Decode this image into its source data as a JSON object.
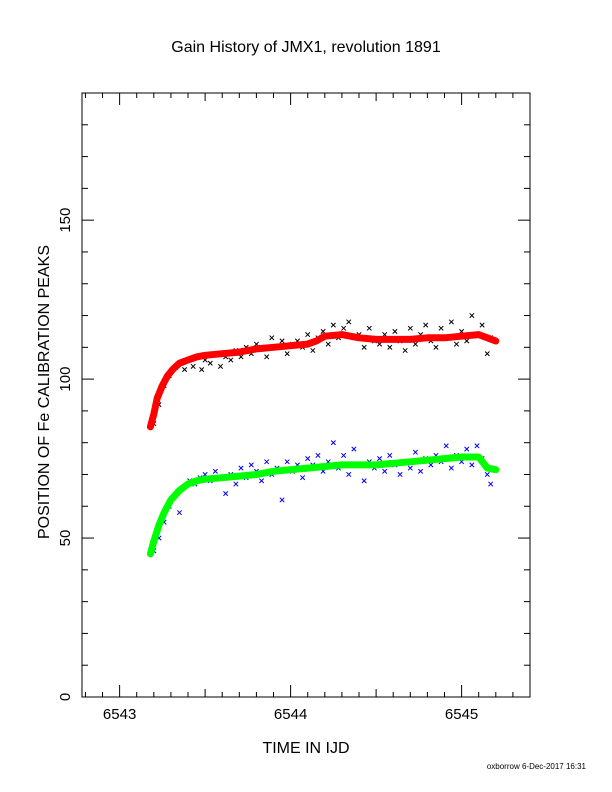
{
  "chart_data": {
    "type": "scatter",
    "title": "Gain History of JMX1, revolution 1891",
    "xlabel": "TIME IN IJD",
    "ylabel": "POSITION OF Fe CALIBRATION PEAKS",
    "xlim": [
      6542.78,
      6545.4
    ],
    "ylim": [
      0,
      190
    ],
    "x_ticks": [
      6543,
      6544,
      6545
    ],
    "y_ticks": [
      0,
      50,
      100,
      150
    ],
    "grid": false,
    "footer": "oxborrow 6-Dec-2017 16:31",
    "series": [
      {
        "role": "upper-fit",
        "style": "thick-line",
        "color": "#ff0000",
        "x": [
          6543.18,
          6543.2,
          6543.22,
          6543.25,
          6543.28,
          6543.31,
          6543.35,
          6543.4,
          6543.45,
          6543.5,
          6543.6,
          6543.7,
          6543.8,
          6543.9,
          6544.0,
          6544.1,
          6544.15,
          6544.2,
          6544.3,
          6544.4,
          6544.5,
          6544.6,
          6544.7,
          6544.8,
          6544.9,
          6545.0,
          6545.1,
          6545.15,
          6545.2
        ],
        "y": [
          85,
          89,
          94,
          98,
          101,
          103,
          105,
          106,
          107,
          107.5,
          108,
          108.5,
          109.5,
          110,
          110.5,
          111,
          112,
          113.5,
          114,
          113,
          112.5,
          112.5,
          112.5,
          113,
          113,
          113.5,
          114,
          113,
          112
        ]
      },
      {
        "role": "upper-points",
        "style": "cross",
        "color": "#000000",
        "x": [
          6543.2,
          6543.23,
          6543.26,
          6543.29,
          6543.31,
          6543.33,
          6543.36,
          6543.38,
          6543.41,
          6543.43,
          6543.45,
          6543.48,
          6543.5,
          6543.53,
          6543.56,
          6543.59,
          6543.62,
          6543.65,
          6543.68,
          6543.71,
          6543.74,
          6543.77,
          6543.8,
          6543.83,
          6543.86,
          6543.89,
          6543.92,
          6543.95,
          6543.98,
          6544.01,
          6544.04,
          6544.07,
          6544.1,
          6544.13,
          6544.16,
          6544.19,
          6544.22,
          6544.25,
          6544.28,
          6544.31,
          6544.34,
          6544.37,
          6544.4,
          6544.43,
          6544.46,
          6544.49,
          6544.52,
          6544.55,
          6544.58,
          6544.61,
          6544.64,
          6544.67,
          6544.7,
          6544.73,
          6544.76,
          6544.79,
          6544.82,
          6544.85,
          6544.88,
          6544.91,
          6544.94,
          6544.97,
          6545.0,
          6545.03,
          6545.06,
          6545.09,
          6545.12,
          6545.15,
          6545.17
        ],
        "y": [
          86,
          92,
          98,
          101,
          103,
          104,
          105,
          103,
          106,
          104,
          107,
          103,
          106,
          105,
          108,
          104,
          107,
          106,
          109,
          107,
          110,
          108,
          111,
          110,
          107,
          113,
          110,
          112,
          108,
          111,
          112,
          110,
          114,
          109,
          113,
          115,
          111,
          117,
          113,
          116,
          118,
          113,
          114,
          110,
          116,
          112,
          111,
          114,
          110,
          115,
          112,
          109,
          116,
          111,
          114,
          117,
          112,
          110,
          116,
          113,
          118,
          111,
          115,
          112,
          120,
          114,
          117,
          108,
          113
        ]
      },
      {
        "role": "lower-fit",
        "style": "thick-line",
        "color": "#00ff00",
        "x": [
          6543.18,
          6543.2,
          6543.23,
          6543.26,
          6543.3,
          6543.35,
          6543.4,
          6543.45,
          6543.5,
          6543.6,
          6543.7,
          6543.8,
          6543.9,
          6544.0,
          6544.1,
          6544.2,
          6544.3,
          6544.4,
          6544.5,
          6544.6,
          6544.7,
          6544.8,
          6544.9,
          6545.0,
          6545.05,
          6545.1,
          6545.15,
          6545.2
        ],
        "y": [
          45,
          49,
          54,
          58,
          62,
          65,
          67,
          68,
          68.5,
          69,
          69.5,
          70,
          71,
          71.5,
          72,
          72.5,
          73,
          73,
          73,
          73.5,
          74,
          74.5,
          75,
          75.5,
          75.5,
          75.5,
          72,
          71.5
        ]
      },
      {
        "role": "lower-points",
        "style": "cross",
        "color": "#0000ff",
        "x": [
          6543.2,
          6543.23,
          6543.26,
          6543.29,
          6543.32,
          6543.35,
          6543.38,
          6543.41,
          6543.44,
          6543.47,
          6543.5,
          6543.53,
          6543.56,
          6543.59,
          6543.62,
          6543.65,
          6543.68,
          6543.71,
          6543.74,
          6543.77,
          6543.8,
          6543.83,
          6543.86,
          6543.89,
          6543.92,
          6543.95,
          6543.98,
          6544.01,
          6544.04,
          6544.07,
          6544.1,
          6544.13,
          6544.16,
          6544.19,
          6544.22,
          6544.25,
          6544.28,
          6544.31,
          6544.34,
          6544.37,
          6544.4,
          6544.43,
          6544.46,
          6544.49,
          6544.52,
          6544.55,
          6544.58,
          6544.61,
          6544.64,
          6544.67,
          6544.7,
          6544.73,
          6544.76,
          6544.79,
          6544.82,
          6544.85,
          6544.88,
          6544.91,
          6544.94,
          6544.97,
          6545.0,
          6545.03,
          6545.06,
          6545.09,
          6545.12,
          6545.15,
          6545.17
        ],
        "y": [
          46,
          50,
          55,
          60,
          63,
          58,
          66,
          68,
          67,
          69,
          70,
          68,
          71,
          69,
          64,
          70,
          67,
          72,
          69,
          73,
          71,
          68,
          74,
          70,
          72,
          62,
          74,
          71,
          73,
          69,
          75,
          73,
          76,
          71,
          74,
          80,
          72,
          76,
          70,
          78,
          73,
          68,
          74,
          72,
          75,
          71,
          76,
          73,
          70,
          74,
          72,
          77,
          71,
          75,
          73,
          76,
          74,
          79,
          72,
          76,
          74,
          78,
          73,
          79,
          75,
          70,
          67
        ]
      }
    ]
  }
}
